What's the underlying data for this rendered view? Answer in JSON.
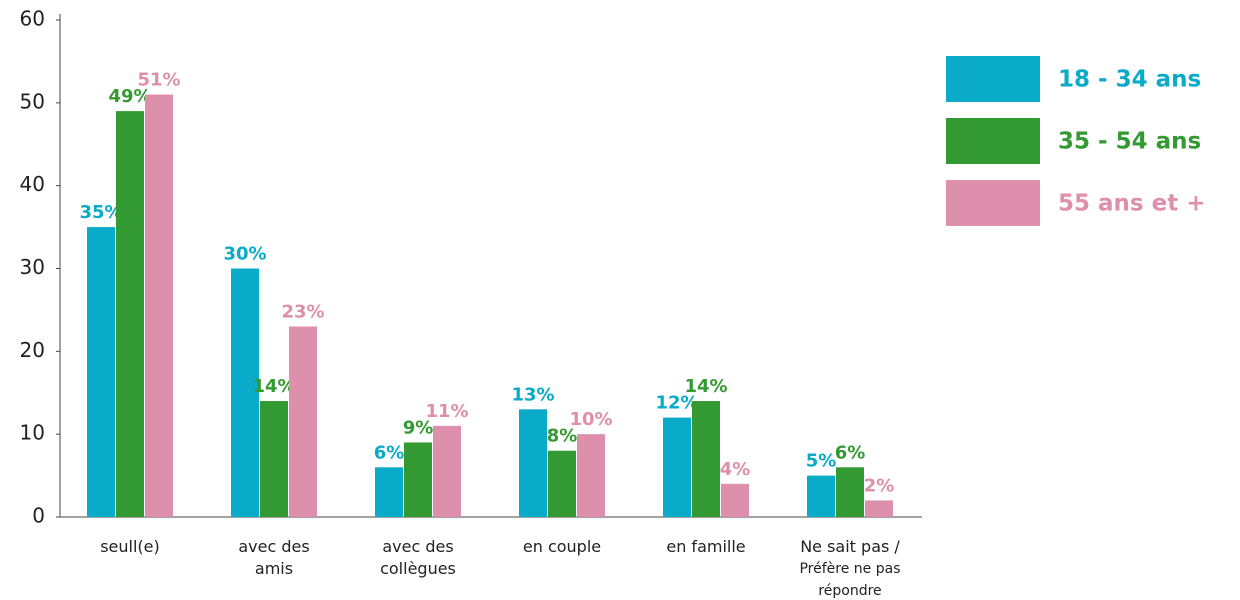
{
  "chart_data": {
    "type": "bar",
    "categories": [
      "seull(e)",
      "avec des\namis",
      "avec des\ncollègues",
      "en couple",
      "en famille",
      "Ne sait pas /\nPréfère ne pas\nrépondre"
    ],
    "series": [
      {
        "name": "18 - 34 ans",
        "color": "#0aabc8",
        "values": [
          35,
          30,
          6,
          13,
          12,
          5
        ],
        "value_labels": [
          "35%",
          "30%",
          "6%",
          "13%",
          "12%",
          "5%"
        ]
      },
      {
        "name": "35 - 54 ans",
        "color": "#339933",
        "values": [
          49,
          14,
          9,
          8,
          14,
          6
        ],
        "value_labels": [
          "49%",
          "14%",
          "9%",
          "8%",
          "14%",
          "6%"
        ]
      },
      {
        "name": "55 ans et +",
        "color": "#de8fab",
        "values": [
          51,
          23,
          11,
          10,
          4,
          2
        ],
        "value_labels": [
          "51%",
          "23%",
          "11%",
          "10%",
          "4%",
          "2%"
        ]
      }
    ],
    "ylim": [
      0,
      60
    ],
    "yticks": [
      0,
      10,
      20,
      30,
      40,
      50,
      60
    ],
    "grid": false,
    "legend": "right"
  }
}
